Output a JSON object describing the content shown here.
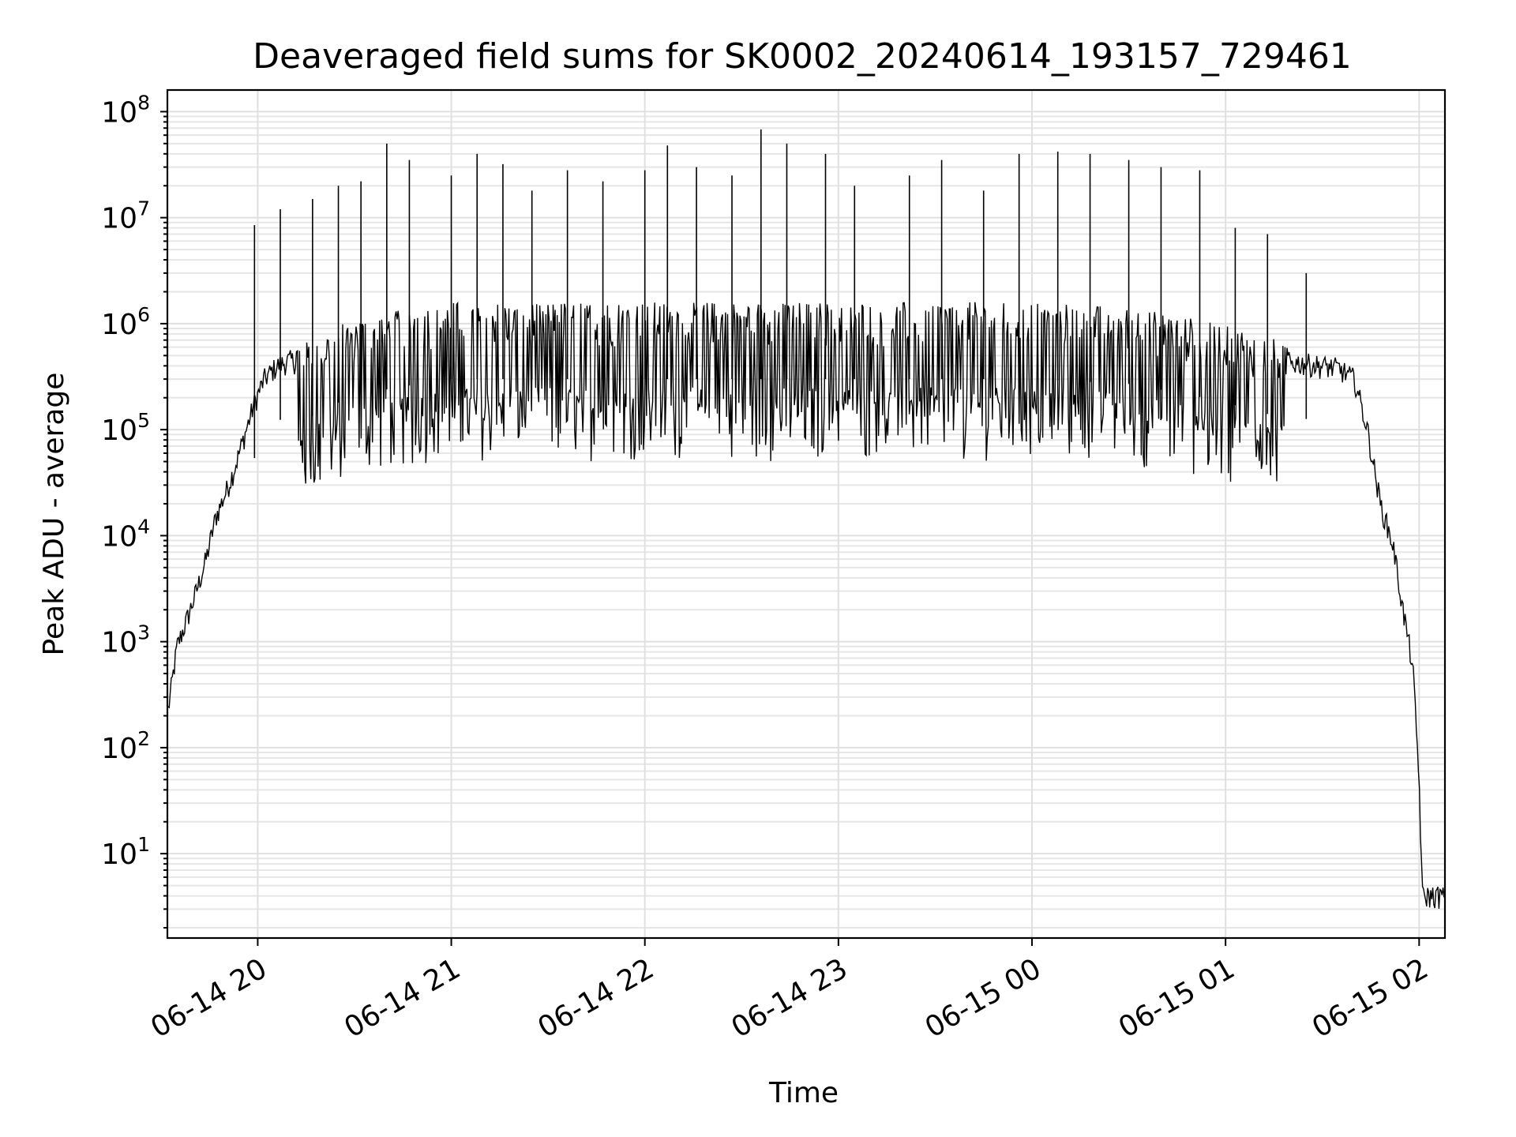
{
  "chart_data": {
    "type": "line",
    "title": "Deaveraged field sums for SK0002_20240614_193157_729461",
    "xlabel": "Time",
    "ylabel": "Peak ADU - average",
    "yscale": "log",
    "ylim": [
      1.6,
      160000000
    ],
    "xlim": [
      "2024-06-14 19:32",
      "2024-06-15 02:08"
    ],
    "grid": true,
    "x_ticks": [
      {
        "t": "2024-06-14 20:00",
        "label": "06-14 20"
      },
      {
        "t": "2024-06-14 21:00",
        "label": "06-14 21"
      },
      {
        "t": "2024-06-14 22:00",
        "label": "06-14 22"
      },
      {
        "t": "2024-06-14 23:00",
        "label": "06-14 23"
      },
      {
        "t": "2024-06-15 00:00",
        "label": "06-15 00"
      },
      {
        "t": "2024-06-15 01:00",
        "label": "06-15 01"
      },
      {
        "t": "2024-06-15 02:00",
        "label": "06-15 02"
      }
    ],
    "y_ticks": [
      {
        "v": 10,
        "base": "10",
        "exp": "1"
      },
      {
        "v": 100,
        "base": "10",
        "exp": "2"
      },
      {
        "v": 1000,
        "base": "10",
        "exp": "3"
      },
      {
        "v": 10000,
        "base": "10",
        "exp": "4"
      },
      {
        "v": 100000,
        "base": "10",
        "exp": "5"
      },
      {
        "v": 1000000,
        "base": "10",
        "exp": "6"
      },
      {
        "v": 10000000,
        "base": "10",
        "exp": "7"
      },
      {
        "v": 100000000,
        "base": "10",
        "exp": "8"
      }
    ],
    "series": [
      {
        "color": "#000000",
        "points": [
          [
            "2024-06-14 19:32",
            200
          ],
          [
            "2024-06-14 19:35",
            900
          ],
          [
            "2024-06-14 19:38",
            1600
          ],
          [
            "2024-06-14 19:41",
            3000
          ],
          [
            "2024-06-14 19:44",
            6000
          ],
          [
            "2024-06-14 19:47",
            15000
          ],
          [
            "2024-06-14 19:50",
            25000
          ],
          [
            "2024-06-14 19:53",
            45000
          ],
          [
            "2024-06-14 19:56",
            90000
          ],
          [
            "2024-06-14 19:59",
            180000
          ],
          [
            "2024-06-14 20:02",
            300000
          ],
          [
            "2024-06-14 20:06",
            400000
          ],
          [
            "2024-06-14 20:10",
            450000
          ],
          [
            "2024-06-14 20:15",
            420000
          ],
          [
            "2024-06-14 20:20",
            500000
          ],
          [
            "2024-06-14 20:25",
            600000
          ],
          [
            "2024-06-14 20:30",
            700000
          ],
          [
            "2024-06-14 20:40",
            800000
          ],
          [
            "2024-06-14 20:50",
            900000
          ],
          [
            "2024-06-14 21:00",
            1000000
          ],
          [
            "2024-06-15 00:00",
            1000000
          ],
          [
            "2024-06-15 00:30",
            900000
          ],
          [
            "2024-06-15 00:50",
            700000
          ],
          [
            "2024-06-15 01:05",
            550000
          ],
          [
            "2024-06-15 01:15",
            450000
          ],
          [
            "2024-06-15 01:25",
            420000
          ],
          [
            "2024-06-15 01:35",
            380000
          ],
          [
            "2024-06-15 01:40",
            300000
          ],
          [
            "2024-06-15 01:44",
            100000
          ],
          [
            "2024-06-15 01:48",
            20000
          ],
          [
            "2024-06-15 01:52",
            8000
          ],
          [
            "2024-06-15 01:55",
            2000
          ],
          [
            "2024-06-15 01:58",
            600
          ],
          [
            "2024-06-15 02:00",
            50
          ],
          [
            "2024-06-15 02:01",
            4
          ],
          [
            "2024-06-15 02:08",
            4
          ]
        ],
        "spikes": [
          [
            "2024-06-14 19:59",
            8500000
          ],
          [
            "2024-06-14 20:07",
            12000000
          ],
          [
            "2024-06-14 20:17",
            15000000
          ],
          [
            "2024-06-14 20:25",
            20000000
          ],
          [
            "2024-06-14 20:32",
            22000000
          ],
          [
            "2024-06-14 20:40",
            50000000
          ],
          [
            "2024-06-14 20:47",
            35000000
          ],
          [
            "2024-06-14 21:00",
            25000000
          ],
          [
            "2024-06-14 21:08",
            40000000
          ],
          [
            "2024-06-14 21:16",
            32000000
          ],
          [
            "2024-06-14 21:25",
            18000000
          ],
          [
            "2024-06-14 21:36",
            28000000
          ],
          [
            "2024-06-14 21:47",
            22000000
          ],
          [
            "2024-06-14 22:00",
            28000000
          ],
          [
            "2024-06-14 22:07",
            48000000
          ],
          [
            "2024-06-14 22:16",
            30000000
          ],
          [
            "2024-06-14 22:27",
            25000000
          ],
          [
            "2024-06-14 22:36",
            68000000
          ],
          [
            "2024-06-14 22:44",
            50000000
          ],
          [
            "2024-06-14 22:56",
            40000000
          ],
          [
            "2024-06-14 23:05",
            20000000
          ],
          [
            "2024-06-14 23:22",
            25000000
          ],
          [
            "2024-06-14 23:32",
            35000000
          ],
          [
            "2024-06-14 23:45",
            18000000
          ],
          [
            "2024-06-14 23:56",
            40000000
          ],
          [
            "2024-06-15 00:08",
            42000000
          ],
          [
            "2024-06-15 00:18",
            40000000
          ],
          [
            "2024-06-15 00:30",
            35000000
          ],
          [
            "2024-06-15 00:40",
            30000000
          ],
          [
            "2024-06-15 00:52",
            28000000
          ],
          [
            "2024-06-15 01:03",
            8000000
          ],
          [
            "2024-06-15 01:13",
            7000000
          ],
          [
            "2024-06-15 01:25",
            3000000
          ]
        ]
      }
    ]
  }
}
